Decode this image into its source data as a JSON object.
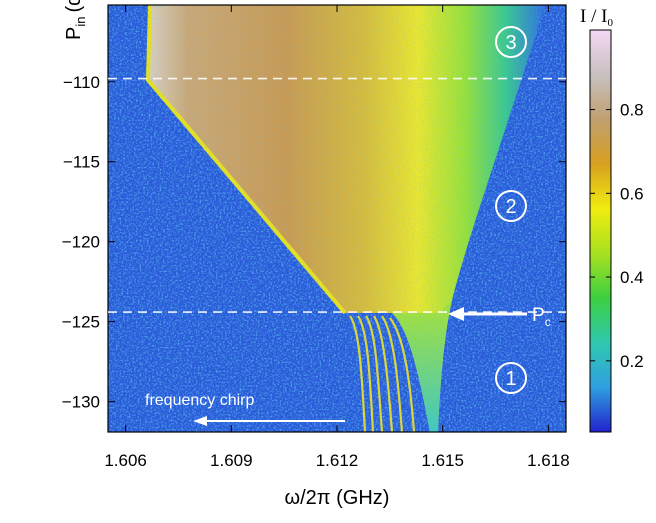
{
  "chart_data": {
    "type": "heatmap",
    "x_label": "ω/2π (GHz)",
    "y_label_main": "P",
    "y_label_sub": "in",
    "y_label_unit": "(dBm)",
    "xlim": [
      1.6055,
      1.6185
    ],
    "xticks": [
      1.606,
      1.609,
      1.612,
      1.615,
      1.618
    ],
    "ylim": [
      -131.9,
      -105.2
    ],
    "yticks": [
      {
        "value": -110,
        "label": "−110"
      },
      {
        "value": -115,
        "label": "−115"
      },
      {
        "value": -120,
        "label": "−120"
      },
      {
        "value": -125,
        "label": "−125"
      },
      {
        "value": -130,
        "label": "−130"
      }
    ],
    "colorbar_label_main": "I / I",
    "colorbar_label_sub": "0",
    "zlim": [
      0.03,
      0.99
    ],
    "zticks": [
      0.2,
      0.4,
      0.6,
      0.8
    ],
    "colormap": [
      "#2222cc",
      "#2f9fe0",
      "#30c8b0",
      "#3cd040",
      "#a8e020",
      "#f0ec10",
      "#d8a020",
      "#c0a070",
      "#c8c0c0",
      "#f4d8f4"
    ],
    "dashed_lines": [
      -109.8,
      -124.4
    ],
    "regions": [
      "3",
      "2",
      "1"
    ],
    "critical_power_main": "P",
    "critical_power_sub": "c",
    "chirp_label": "frequency chirp"
  }
}
